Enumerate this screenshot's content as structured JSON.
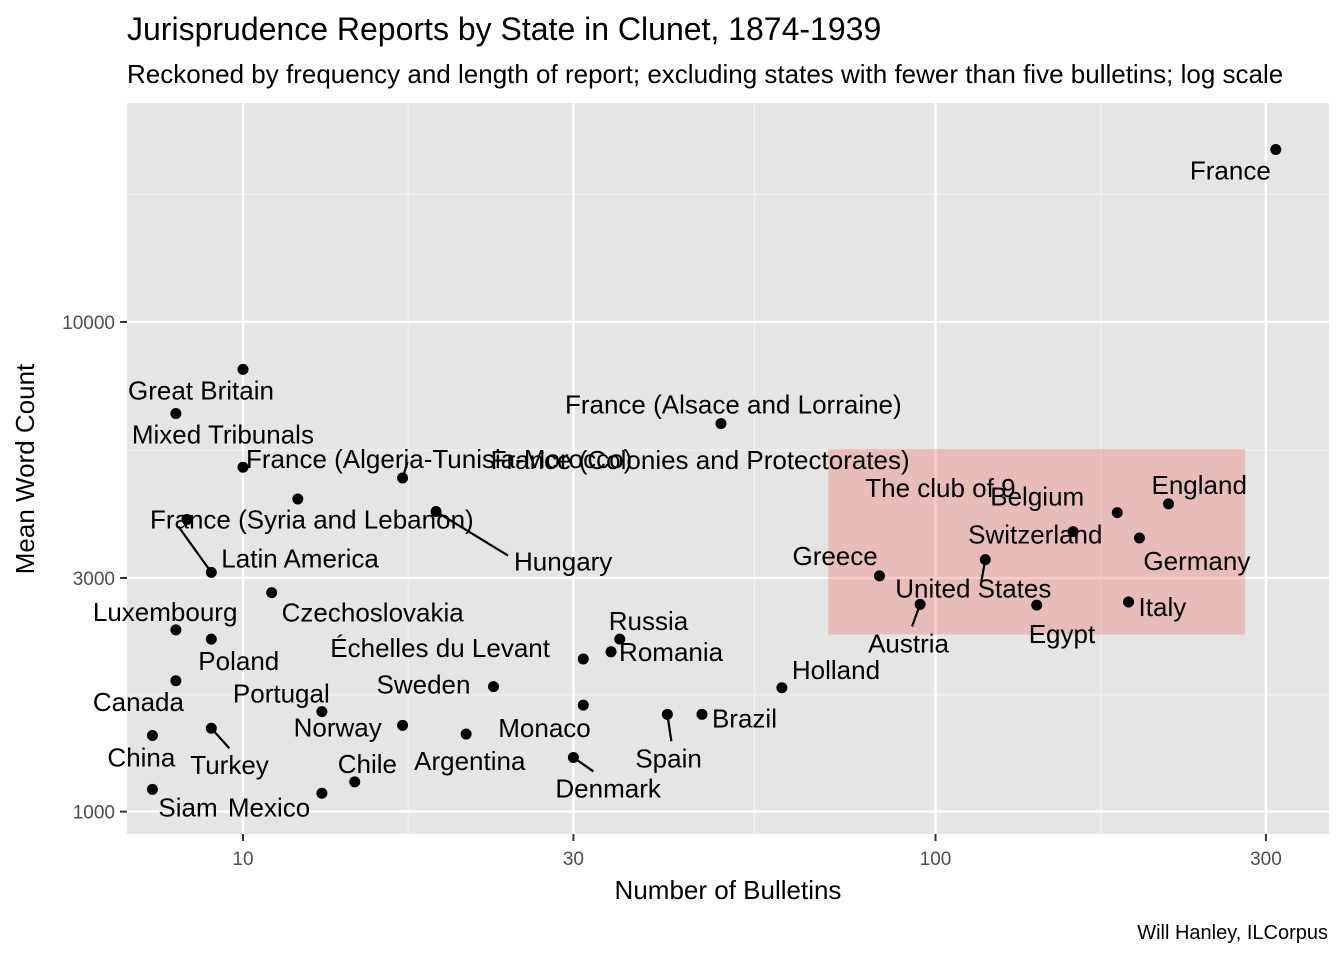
{
  "chart_data": {
    "type": "scatter",
    "title": "Jurisprudence Reports by State in Clunet, 1874-1939",
    "subtitle": "Reckoned by frequency and length of report; excluding states with fewer than five bulletins; log scale",
    "xlabel": "Number of Bulletins",
    "ylabel": "Mean Word Count",
    "caption": "Will Hanley, ILCorpus",
    "x_scale": "log",
    "y_scale": "log",
    "xlim": [
      6.8,
      370
    ],
    "ylim": [
      900,
      28000
    ],
    "x_ticks": [
      10,
      30,
      100,
      300
    ],
    "y_ticks": [
      1000,
      3000,
      10000
    ],
    "x_tick_labels": [
      "10",
      "30",
      "100",
      "300"
    ],
    "y_tick_labels": [
      "1000",
      "3000",
      "10000"
    ],
    "grid": true,
    "highlight": {
      "label": "The club of 9",
      "color": "#f08080",
      "x_range": [
        70,
        280
      ],
      "y_range": [
        2300,
        5500
      ]
    },
    "points": [
      {
        "label": "France",
        "x": 310,
        "y": 22500
      },
      {
        "label": "Great Britain",
        "x": 10,
        "y": 8000
      },
      {
        "label": "Mixed Tribunals",
        "x": 8,
        "y": 6500
      },
      {
        "label": "France (Alsace and Lorraine)",
        "x": 49,
        "y": 6200
      },
      {
        "label": "France (Algeria-Tunisia-Morocco)",
        "x": 10,
        "y": 5050
      },
      {
        "label": "France (Colonies and Protectorates)",
        "x": 17,
        "y": 4800
      },
      {
        "label": "France (Syria and Lebanon)",
        "x": 8.3,
        "y": 3950
      },
      {
        "label": "",
        "x": 12,
        "y": 4350
      },
      {
        "label": "Hungary",
        "x": 19,
        "y": 4100
      },
      {
        "label": "Latin America",
        "x": 9,
        "y": 3080
      },
      {
        "label": "Czechoslovakia",
        "x": 11,
        "y": 2800
      },
      {
        "label": "Luxembourg",
        "x": 8,
        "y": 2350
      },
      {
        "label": "Poland",
        "x": 9,
        "y": 2250
      },
      {
        "label": "Canada",
        "x": 8,
        "y": 1850
      },
      {
        "label": "China",
        "x": 7.4,
        "y": 1430
      },
      {
        "label": "Turkey",
        "x": 9,
        "y": 1480
      },
      {
        "label": "Siam",
        "x": 7.4,
        "y": 1110
      },
      {
        "label": "Mexico",
        "x": 13,
        "y": 1090
      },
      {
        "label": "Chile",
        "x": 14.5,
        "y": 1150
      },
      {
        "label": "Portugal",
        "x": 13,
        "y": 1600
      },
      {
        "label": "Norway",
        "x": 17,
        "y": 1500
      },
      {
        "label": "Argentina",
        "x": 21,
        "y": 1440
      },
      {
        "label": "Sweden",
        "x": 23,
        "y": 1800
      },
      {
        "label": "Échelles du Levant",
        "x": 31,
        "y": 2050
      },
      {
        "label": "Russia",
        "x": 35,
        "y": 2250
      },
      {
        "label": "Romania",
        "x": 34,
        "y": 2120
      },
      {
        "label": "Monaco",
        "x": 31,
        "y": 1650
      },
      {
        "label": "Denmark",
        "x": 30,
        "y": 1290
      },
      {
        "label": "Spain",
        "x": 41,
        "y": 1580
      },
      {
        "label": "Brazil",
        "x": 46,
        "y": 1580
      },
      {
        "label": "Holland",
        "x": 60,
        "y": 1790
      },
      {
        "label": "Greece",
        "x": 83,
        "y": 3030
      },
      {
        "label": "Austria",
        "x": 95,
        "y": 2650
      },
      {
        "label": "United States",
        "x": 118,
        "y": 3270
      },
      {
        "label": "Switzerland",
        "x": 158,
        "y": 3730
      },
      {
        "label": "Belgium",
        "x": 183,
        "y": 4080
      },
      {
        "label": "England",
        "x": 217,
        "y": 4250
      },
      {
        "label": "Germany",
        "x": 197,
        "y": 3620
      },
      {
        "label": "Italy",
        "x": 190,
        "y": 2680
      },
      {
        "label": "Egypt",
        "x": 140,
        "y": 2640
      }
    ]
  }
}
